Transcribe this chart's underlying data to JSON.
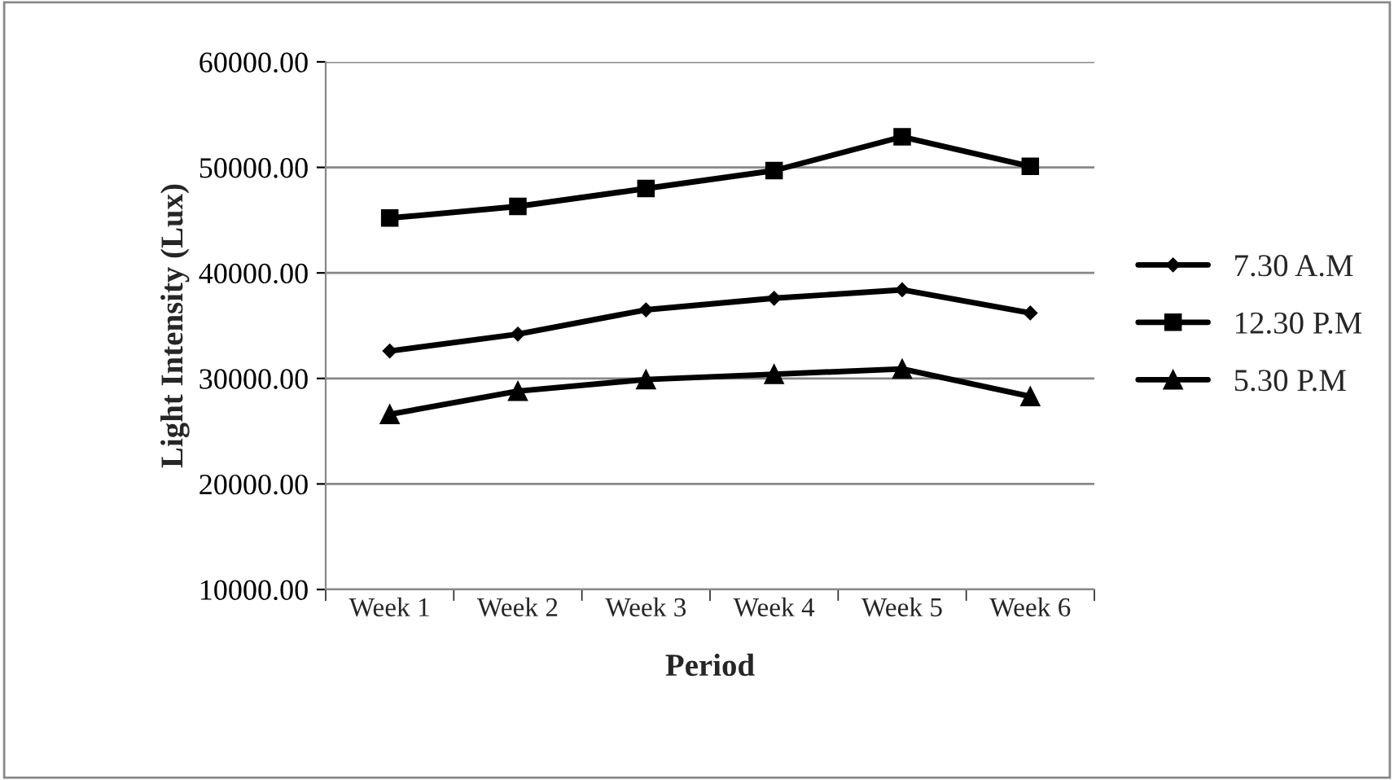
{
  "chart_data": {
    "type": "line",
    "xlabel": "Period",
    "ylabel": "Light Intensity (Lux)",
    "categories": [
      "Week 1",
      "Week 2",
      "Week 3",
      "Week 4",
      "Week 5",
      "Week 6"
    ],
    "series": [
      {
        "name": "7.30 A.M",
        "color": "#000000",
        "marker": "diamond",
        "values": [
          32600,
          34200,
          36500,
          37600,
          38400,
          36200
        ]
      },
      {
        "name": "12.30 P.M",
        "color": "#000000",
        "marker": "square",
        "values": [
          45200,
          46300,
          48000,
          49700,
          52900,
          50100
        ]
      },
      {
        "name": "5.30 P.M",
        "color": "#000000",
        "marker": "triangle",
        "values": [
          26600,
          28800,
          29900,
          30400,
          30900,
          28300
        ]
      }
    ],
    "ylim": [
      10000,
      60000
    ],
    "yticks": [
      {
        "value": 10000,
        "label": "10000.00"
      },
      {
        "value": 20000,
        "label": "20000.00"
      },
      {
        "value": 30000,
        "label": "30000.00"
      },
      {
        "value": 40000,
        "label": "40000.00"
      },
      {
        "value": 50000,
        "label": "50000.00"
      },
      {
        "value": 60000,
        "label": "60000.00"
      }
    ],
    "grid": "y",
    "legend": "right",
    "line_style": "solid"
  }
}
